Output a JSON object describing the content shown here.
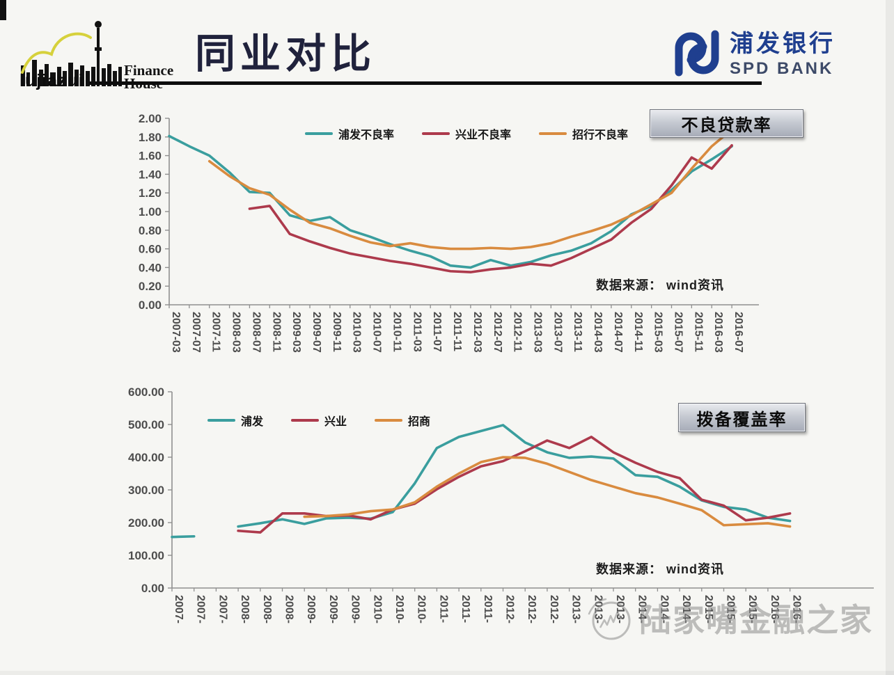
{
  "header": {
    "title": "同业对比",
    "left_logo": {
      "word": "lujiazui",
      "line1": "Finance",
      "line2": "House"
    },
    "right_logo": {
      "cn": "浦发银行",
      "en": "SPD BANK",
      "brand_color": "#1f3f8f"
    }
  },
  "watermark": {
    "text": "陆家嘴金融之家"
  },
  "chart_data": [
    {
      "type": "line",
      "title": "不良贷款率",
      "source_note": "数据来源： wind资讯",
      "legend_position": "top-center",
      "grid": false,
      "ylim": [
        0,
        2.0
      ],
      "ytick_step": 0.2,
      "ytick_labels": [
        "0.00",
        "0.20",
        "0.40",
        "0.60",
        "0.80",
        "1.00",
        "1.20",
        "1.40",
        "1.60",
        "1.80",
        "2.00"
      ],
      "categories": [
        "2007-03",
        "2007-07",
        "2007-11",
        "2008-03",
        "2008-07",
        "2008-11",
        "2009-03",
        "2009-07",
        "2009-11",
        "2010-03",
        "2010-07",
        "2010-11",
        "2011-03",
        "2011-07",
        "2011-11",
        "2012-03",
        "2012-07",
        "2012-11",
        "2013-03",
        "2013-07",
        "2013-11",
        "2014-03",
        "2014-07",
        "2014-11",
        "2015-03",
        "2015-07",
        "2015-11",
        "2016-03",
        "2016-07"
      ],
      "series": [
        {
          "name": "浦发不良率",
          "color": "#3a9e9e",
          "values": [
            1.81,
            1.7,
            1.6,
            1.42,
            1.21,
            1.2,
            0.96,
            0.9,
            0.94,
            0.8,
            0.73,
            0.65,
            0.58,
            0.52,
            0.42,
            0.4,
            0.48,
            0.42,
            0.46,
            0.53,
            0.58,
            0.66,
            0.79,
            0.97,
            1.06,
            1.23,
            1.43,
            1.56,
            1.7
          ]
        },
        {
          "name": "兴业不良率",
          "color": "#ad3a4c",
          "values": [
            null,
            null,
            null,
            null,
            1.03,
            1.06,
            0.76,
            0.68,
            0.61,
            0.55,
            0.51,
            0.47,
            0.44,
            0.4,
            0.36,
            0.35,
            0.38,
            0.4,
            0.44,
            0.42,
            0.5,
            0.6,
            0.7,
            0.88,
            1.03,
            1.28,
            1.58,
            1.46,
            1.71
          ]
        },
        {
          "name": "招行不良率",
          "color": "#d98b3f",
          "values": [
            null,
            null,
            1.54,
            1.38,
            1.25,
            1.18,
            1.02,
            0.88,
            0.82,
            0.74,
            0.67,
            0.63,
            0.66,
            0.62,
            0.6,
            0.6,
            0.61,
            0.6,
            0.62,
            0.66,
            0.73,
            0.79,
            0.86,
            0.96,
            1.08,
            1.2,
            1.46,
            1.7,
            1.88
          ]
        }
      ]
    },
    {
      "type": "line",
      "title": "拨备覆盖率",
      "source_note": "数据来源： wind资讯",
      "legend_position": "top-left",
      "grid": false,
      "ylim": [
        0,
        600
      ],
      "ytick_step": 100,
      "ytick_labels": [
        "0.00",
        "100.00",
        "200.00",
        "300.00",
        "400.00",
        "500.00",
        "600.00"
      ],
      "categories": [
        "2007-",
        "2007-",
        "2007-",
        "2008-",
        "2008-",
        "2008-",
        "2009-",
        "2009-",
        "2009-",
        "2010-",
        "2010-",
        "2010-",
        "2011-",
        "2011-",
        "2011-",
        "2012-",
        "2012-",
        "2012-",
        "2013-",
        "2013-",
        "2013-",
        "2014-",
        "2014-",
        "2014-",
        "2015-",
        "2015-",
        "2015-",
        "2016-",
        "2016-"
      ],
      "series": [
        {
          "name": "浦发",
          "color": "#3a9e9e",
          "values": [
            156,
            158,
            null,
            188,
            198,
            210,
            196,
            213,
            215,
            212,
            232,
            320,
            428,
            462,
            480,
            498,
            445,
            415,
            398,
            402,
            396,
            345,
            340,
            310,
            268,
            248,
            240,
            215,
            205
          ]
        },
        {
          "name": "兴业",
          "color": "#ad3a4c",
          "values": [
            null,
            null,
            null,
            175,
            170,
            228,
            228,
            220,
            222,
            210,
            240,
            258,
            302,
            340,
            372,
            388,
            418,
            451,
            428,
            462,
            415,
            383,
            355,
            336,
            270,
            252,
            207,
            215,
            228
          ]
        },
        {
          "name": "招商",
          "color": "#d98b3f",
          "values": [
            null,
            null,
            null,
            null,
            null,
            null,
            218,
            220,
            225,
            235,
            240,
            262,
            310,
            350,
            385,
            400,
            398,
            380,
            355,
            330,
            310,
            290,
            277,
            258,
            238,
            192,
            195,
            198,
            188
          ]
        }
      ]
    }
  ]
}
